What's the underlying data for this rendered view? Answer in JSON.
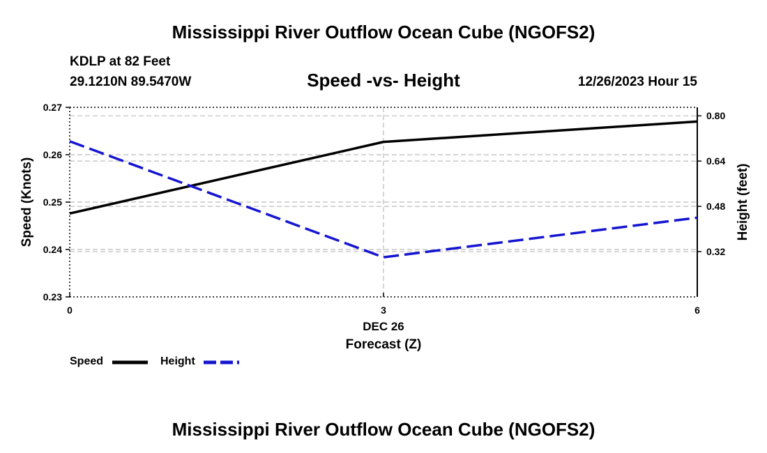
{
  "header": {
    "title": "Mississippi River Outflow Ocean Cube (NGOFS2)",
    "station": "KDLP at 82 Feet",
    "coords": "29.1210N  89.5470W",
    "subtitle": "Speed -vs- Height",
    "datetime": "12/26/2023 Hour 15"
  },
  "footer": {
    "title": "Mississippi River Outflow Ocean Cube (NGOFS2)"
  },
  "chart_data": {
    "type": "line",
    "title": "Speed -vs- Height",
    "xlabel": "Forecast (Z)",
    "x_date_label": "DEC 26",
    "x": [
      0,
      3,
      6
    ],
    "x_tick_labels": [
      "0",
      "3",
      "6"
    ],
    "xlim": [
      0,
      6
    ],
    "y_left": {
      "label": "Speed (Knots)",
      "lim": [
        0.23,
        0.27
      ],
      "ticks": [
        0.23,
        0.24,
        0.25,
        0.26,
        0.27
      ],
      "tick_labels": [
        "0.23",
        "0.24",
        "0.25",
        "0.26",
        "0.27"
      ]
    },
    "y_right": {
      "label": "Height (feet)",
      "lim": [
        0.16,
        0.83
      ],
      "ticks": [
        0.32,
        0.48,
        0.64,
        0.8
      ],
      "tick_labels": [
        "0.32",
        "0.48",
        "0.64",
        "0.80"
      ]
    },
    "series": [
      {
        "name": "Speed",
        "axis": "left",
        "color": "#000000",
        "style": "solid",
        "values": [
          0.2476,
          0.2627,
          0.267
        ]
      },
      {
        "name": "Height",
        "axis": "right",
        "color": "#1515d0",
        "style": "dashed",
        "values": [
          0.71,
          0.3,
          0.44
        ]
      }
    ],
    "grid": true,
    "legend": [
      {
        "label": "Speed",
        "color": "#000000",
        "style": "solid"
      },
      {
        "label": "Height",
        "color": "#1515d0",
        "style": "dashed"
      }
    ]
  }
}
